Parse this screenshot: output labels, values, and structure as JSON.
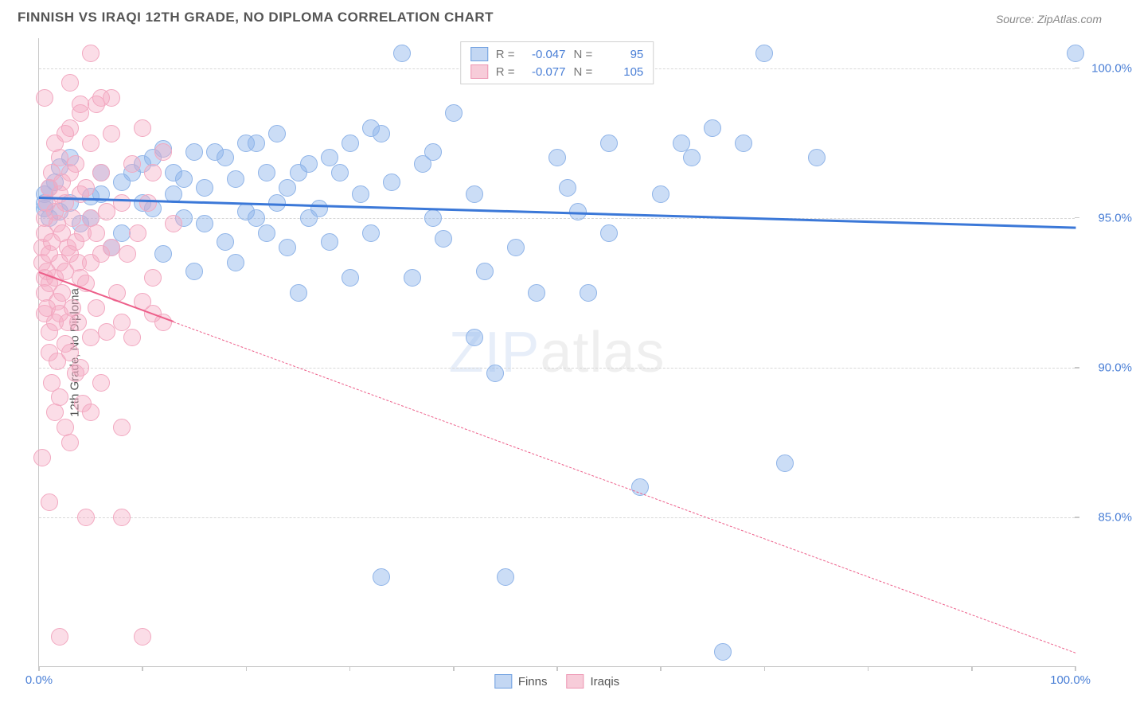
{
  "header": {
    "title": "FINNISH VS IRAQI 12TH GRADE, NO DIPLOMA CORRELATION CHART",
    "source": "Source: ZipAtlas.com"
  },
  "watermark": {
    "part1": "ZIP",
    "part2": "atlas"
  },
  "chart": {
    "type": "scatter",
    "y_axis_title": "12th Grade, No Diploma",
    "background_color": "#ffffff",
    "grid_color": "#d8d8d8",
    "axis_color": "#c8c8c8",
    "tick_label_color": "#4a7fd6",
    "axis_title_color": "#555555",
    "xlim": [
      0,
      100
    ],
    "ylim": [
      80,
      101
    ],
    "x_ticks": [
      0,
      10,
      20,
      30,
      40,
      50,
      60,
      70,
      80,
      90,
      100
    ],
    "x_tick_labels": {
      "0": "0.0%",
      "100": "100.0%"
    },
    "y_gridlines": [
      85,
      90,
      95,
      100
    ],
    "y_tick_labels": {
      "85": "85.0%",
      "90": "90.0%",
      "95": "95.0%",
      "100": "100.0%"
    },
    "marker_radius": 11,
    "marker_border_width": 1.5,
    "series": [
      {
        "name": "Finns",
        "legend_label": "Finns",
        "fill_color": "rgba(140,180,235,0.45)",
        "stroke_color": "#8fb4e8",
        "swatch_fill": "#c3d7f3",
        "swatch_border": "#6f9fe0",
        "R_label": "R =",
        "R_value": "-0.047",
        "N_label": "N =",
        "N_value": "95",
        "trend": {
          "x1": 0,
          "y1": 95.7,
          "x2": 100,
          "y2": 94.7,
          "color": "#3b78d8",
          "width": 2.5,
          "dashed": false,
          "solid_until_x": 100
        },
        "points": [
          [
            0.5,
            95.5
          ],
          [
            1,
            96
          ],
          [
            1,
            95
          ],
          [
            0.5,
            95.3
          ],
          [
            1.5,
            96.2
          ],
          [
            2,
            96.7
          ],
          [
            3,
            97
          ],
          [
            5,
            95
          ],
          [
            5,
            95.7
          ],
          [
            6,
            95.8
          ],
          [
            6,
            96.5
          ],
          [
            7,
            94
          ],
          [
            8,
            94.5
          ],
          [
            9,
            96.5
          ],
          [
            10,
            96.8
          ],
          [
            10,
            95.5
          ],
          [
            11,
            95.3
          ],
          [
            11,
            97
          ],
          [
            12,
            97.3
          ],
          [
            12,
            93.8
          ],
          [
            13,
            95.8
          ],
          [
            14,
            96.3
          ],
          [
            14,
            95
          ],
          [
            15,
            93.2
          ],
          [
            15,
            97.2
          ],
          [
            16,
            96
          ],
          [
            16,
            94.8
          ],
          [
            17,
            97.2
          ],
          [
            18,
            94.2
          ],
          [
            18,
            97
          ],
          [
            19,
            96.3
          ],
          [
            19,
            93.5
          ],
          [
            20,
            97.5
          ],
          [
            20,
            95.2
          ],
          [
            21,
            95
          ],
          [
            21,
            97.5
          ],
          [
            22,
            96.5
          ],
          [
            22,
            94.5
          ],
          [
            23,
            95.5
          ],
          [
            23,
            97.8
          ],
          [
            24,
            96
          ],
          [
            24,
            94
          ],
          [
            25,
            96.5
          ],
          [
            25,
            92.5
          ],
          [
            26,
            96.8
          ],
          [
            27,
            95.3
          ],
          [
            28,
            97
          ],
          [
            28,
            94.2
          ],
          [
            29,
            96.5
          ],
          [
            30,
            93
          ],
          [
            30,
            97.5
          ],
          [
            31,
            95.8
          ],
          [
            32,
            98
          ],
          [
            32,
            94.5
          ],
          [
            33,
            83
          ],
          [
            33,
            97.8
          ],
          [
            34,
            96.2
          ],
          [
            35,
            100.5
          ],
          [
            36,
            93
          ],
          [
            37,
            96.8
          ],
          [
            38,
            97.2
          ],
          [
            38,
            95
          ],
          [
            39,
            94.3
          ],
          [
            40,
            98.5
          ],
          [
            42,
            95.8
          ],
          [
            42,
            91
          ],
          [
            43,
            93.2
          ],
          [
            44,
            89.8
          ],
          [
            45,
            83
          ],
          [
            46,
            94
          ],
          [
            48,
            92.5
          ],
          [
            50,
            97
          ],
          [
            51,
            96
          ],
          [
            52,
            95.2
          ],
          [
            53,
            92.5
          ],
          [
            55,
            94.5
          ],
          [
            55,
            97.5
          ],
          [
            58,
            86
          ],
          [
            60,
            95.8
          ],
          [
            62,
            97.5
          ],
          [
            63,
            97
          ],
          [
            65,
            98
          ],
          [
            66,
            80.5
          ],
          [
            68,
            97.5
          ],
          [
            70,
            100.5
          ],
          [
            72,
            86.8
          ],
          [
            75,
            97
          ],
          [
            100,
            100.5
          ],
          [
            0.5,
            95.8
          ],
          [
            2,
            95.2
          ],
          [
            3,
            95.5
          ],
          [
            4,
            94.8
          ],
          [
            8,
            96.2
          ],
          [
            13,
            96.5
          ],
          [
            26,
            95
          ]
        ]
      },
      {
        "name": "Iraqis",
        "legend_label": "Iraqis",
        "fill_color": "rgba(245,170,195,0.40)",
        "stroke_color": "#f2a8c0",
        "swatch_fill": "#f7ccd9",
        "swatch_border": "#ed96b3",
        "R_label": "R =",
        "R_value": "-0.077",
        "N_label": "N =",
        "N_value": "105",
        "trend": {
          "x1": 0,
          "y1": 93.2,
          "x2": 100,
          "y2": 80.5,
          "color": "#ed5f8a",
          "width": 2.0,
          "dashed": true,
          "solid_until_x": 13
        },
        "points": [
          [
            0.3,
            94
          ],
          [
            0.3,
            93.5
          ],
          [
            0.5,
            93
          ],
          [
            0.5,
            95
          ],
          [
            0.5,
            92.5
          ],
          [
            0.5,
            91.8
          ],
          [
            0.5,
            94.5
          ],
          [
            0.8,
            95.5
          ],
          [
            0.8,
            93.2
          ],
          [
            0.8,
            92
          ],
          [
            1,
            96
          ],
          [
            1,
            93.8
          ],
          [
            1,
            92.8
          ],
          [
            1,
            91.2
          ],
          [
            1,
            90.5
          ],
          [
            1.2,
            94.2
          ],
          [
            1.2,
            96.5
          ],
          [
            1.2,
            89.5
          ],
          [
            1.5,
            95.2
          ],
          [
            1.5,
            93
          ],
          [
            1.5,
            91.5
          ],
          [
            1.5,
            88.5
          ],
          [
            1.8,
            94.8
          ],
          [
            1.8,
            92.2
          ],
          [
            1.8,
            90.2
          ],
          [
            2,
            97
          ],
          [
            2,
            95.8
          ],
          [
            2,
            93.5
          ],
          [
            2,
            91.8
          ],
          [
            2,
            89
          ],
          [
            2.2,
            94.5
          ],
          [
            2.2,
            96.2
          ],
          [
            2.2,
            92.5
          ],
          [
            2.5,
            95.5
          ],
          [
            2.5,
            93.2
          ],
          [
            2.5,
            90.8
          ],
          [
            2.5,
            88
          ],
          [
            2.8,
            94
          ],
          [
            2.8,
            91.5
          ],
          [
            3,
            98
          ],
          [
            3,
            96.5
          ],
          [
            3,
            93.8
          ],
          [
            3,
            90.5
          ],
          [
            3,
            87.5
          ],
          [
            3.2,
            95
          ],
          [
            3.2,
            92
          ],
          [
            3.5,
            94.2
          ],
          [
            3.5,
            96.8
          ],
          [
            3.5,
            89.8
          ],
          [
            3.8,
            93.5
          ],
          [
            3.8,
            91.5
          ],
          [
            4,
            95.8
          ],
          [
            4,
            98.5
          ],
          [
            4,
            93
          ],
          [
            4,
            90
          ],
          [
            4.2,
            94.5
          ],
          [
            4.2,
            88.8
          ],
          [
            4.5,
            96
          ],
          [
            4.5,
            92.8
          ],
          [
            4.5,
            85
          ],
          [
            5,
            97.5
          ],
          [
            5,
            95
          ],
          [
            5,
            93.5
          ],
          [
            5,
            91
          ],
          [
            5,
            100.5
          ],
          [
            5.5,
            98.8
          ],
          [
            5.5,
            94.5
          ],
          [
            5.5,
            92
          ],
          [
            6,
            96.5
          ],
          [
            6,
            93.8
          ],
          [
            6,
            89.5
          ],
          [
            6.5,
            95.2
          ],
          [
            6.5,
            91.2
          ],
          [
            7,
            97.8
          ],
          [
            7,
            94
          ],
          [
            7,
            99
          ],
          [
            7.5,
            92.5
          ],
          [
            8,
            95.5
          ],
          [
            8,
            91.5
          ],
          [
            8,
            85
          ],
          [
            8.5,
            93.8
          ],
          [
            9,
            96.8
          ],
          [
            9,
            91
          ],
          [
            9.5,
            94.5
          ],
          [
            10,
            98
          ],
          [
            10,
            92.2
          ],
          [
            10,
            81
          ],
          [
            10.5,
            95.5
          ],
          [
            11,
            96.5
          ],
          [
            11,
            93
          ],
          [
            12,
            97.2
          ],
          [
            12,
            91.5
          ],
          [
            13,
            94.8
          ],
          [
            0.3,
            87
          ],
          [
            1,
            85.5
          ],
          [
            1.5,
            97.5
          ],
          [
            2,
            81
          ],
          [
            4,
            98.8
          ],
          [
            6,
            99
          ],
          [
            3,
            99.5
          ],
          [
            0.5,
            99
          ],
          [
            2.5,
            97.8
          ],
          [
            8,
            88
          ],
          [
            11,
            91.8
          ],
          [
            5,
            88.5
          ]
        ]
      }
    ]
  }
}
